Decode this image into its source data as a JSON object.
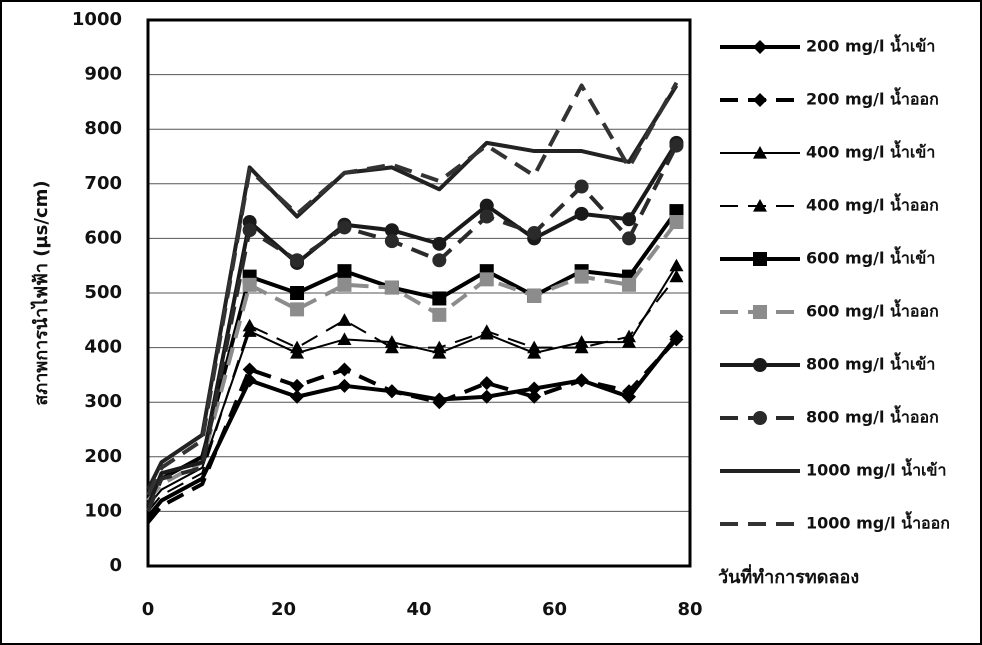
{
  "chart_data": {
    "type": "line",
    "y_label": "สภาพการนำไฟฟ้า (µs/cm)",
    "x_label": "วันที่ทำการทดลอง",
    "x": [
      0,
      2,
      8,
      15,
      22,
      29,
      36,
      43,
      50,
      57,
      64,
      71,
      78
    ],
    "xlim": [
      0,
      80
    ],
    "xticks": [
      0,
      20,
      40,
      60,
      80
    ],
    "ylim": [
      0,
      1000
    ],
    "yticks": [
      0,
      100,
      200,
      300,
      400,
      500,
      600,
      700,
      800,
      900,
      1000
    ],
    "grid": true,
    "series": [
      {
        "name": "200 mg/l น้ำเข้า",
        "color": "#000000",
        "dash": false,
        "marker": "diamond",
        "values": [
          90,
          120,
          160,
          340,
          310,
          330,
          320,
          305,
          310,
          325,
          340,
          310,
          420
        ]
      },
      {
        "name": "200 mg/l น้ำออก",
        "color": "#000000",
        "dash": true,
        "marker": "diamond",
        "values": [
          80,
          110,
          150,
          360,
          330,
          360,
          320,
          300,
          335,
          310,
          340,
          320,
          415
        ]
      },
      {
        "name": "400 mg/l น้ำเข้า",
        "color": "#000000",
        "dash": false,
        "marker": "triangle",
        "values": [
          110,
          140,
          180,
          430,
          390,
          415,
          410,
          390,
          425,
          390,
          410,
          410,
          550
        ]
      },
      {
        "name": "400 mg/l น้ำออก",
        "color": "#000000",
        "dash": true,
        "marker": "triangle",
        "values": [
          100,
          130,
          170,
          440,
          400,
          450,
          400,
          400,
          430,
          400,
          400,
          420,
          530
        ]
      },
      {
        "name": "600 mg/l น้ำเข้า",
        "color": "#000000",
        "dash": false,
        "marker": "square",
        "values": [
          130,
          160,
          200,
          530,
          500,
          540,
          510,
          490,
          540,
          495,
          540,
          530,
          650
        ]
      },
      {
        "name": "600 mg/l น้ำออก",
        "color": "#8c8c8c",
        "dash": true,
        "marker": "square",
        "values": [
          120,
          150,
          190,
          515,
          470,
          515,
          510,
          460,
          525,
          495,
          530,
          515,
          630
        ]
      },
      {
        "name": "800 mg/l น้ำเข้า",
        "color": "#1a1a1a",
        "dash": false,
        "marker": "circle",
        "values": [
          110,
          170,
          190,
          630,
          555,
          625,
          615,
          590,
          660,
          600,
          645,
          635,
          775
        ]
      },
      {
        "name": "800 mg/l น้ำออก",
        "color": "#2a2a2a",
        "dash": true,
        "marker": "circle",
        "values": [
          100,
          160,
          180,
          615,
          560,
          620,
          595,
          560,
          640,
          610,
          695,
          600,
          770
        ]
      },
      {
        "name": "1000 mg/l น้ำเข้า",
        "color": "#222222",
        "dash": false,
        "marker": "none",
        "values": [
          140,
          190,
          240,
          730,
          640,
          720,
          730,
          690,
          775,
          760,
          760,
          740,
          880
        ]
      },
      {
        "name": "1000 mg/l น้ำออก",
        "color": "#333333",
        "dash": true,
        "marker": "none",
        "values": [
          130,
          180,
          230,
          725,
          645,
          720,
          735,
          705,
          770,
          715,
          880,
          730,
          885
        ]
      }
    ]
  }
}
